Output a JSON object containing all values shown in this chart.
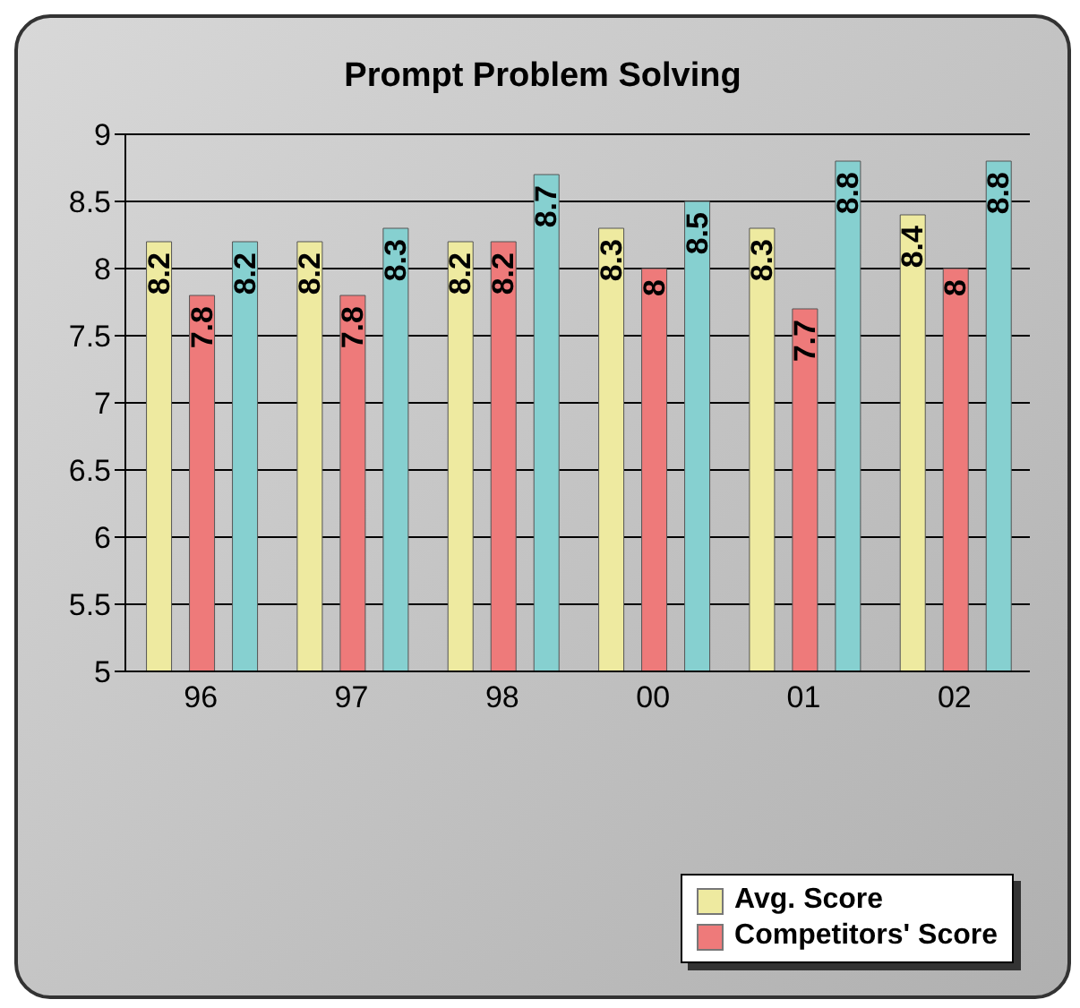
{
  "chart_data": {
    "type": "bar",
    "title": "Prompt Problem Solving",
    "categories": [
      "96",
      "97",
      "98",
      "00",
      "01",
      "02"
    ],
    "series": [
      {
        "name": "Avg. Score",
        "color": "#eeeaa0",
        "values": [
          8.2,
          8.2,
          8.2,
          8.3,
          8.3,
          8.4
        ]
      },
      {
        "name": "Competitors' Score",
        "color": "#ee7a7a",
        "values": [
          7.8,
          7.8,
          8.2,
          8,
          7.7,
          8
        ]
      },
      {
        "color": "#86d0d0",
        "values": [
          8.2,
          8.3,
          8.7,
          8.5,
          8.8,
          8.8
        ]
      }
    ],
    "ylim": [
      5,
      9
    ],
    "yticks": [
      5,
      5.5,
      6,
      6.5,
      7,
      7.5,
      8,
      8.5,
      9
    ],
    "grid": "y",
    "legend": "bottom right",
    "data_labels": true
  }
}
